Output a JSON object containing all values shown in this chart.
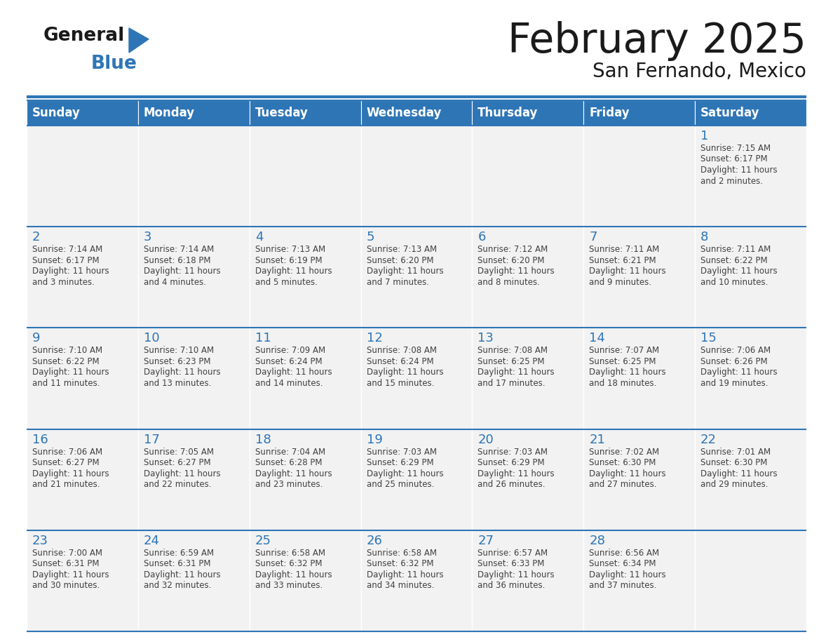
{
  "title": "February 2025",
  "subtitle": "San Fernando, Mexico",
  "header_bg": "#2E75B6",
  "header_text": "#FFFFFF",
  "cell_bg": "#F2F2F2",
  "day_names": [
    "Sunday",
    "Monday",
    "Tuesday",
    "Wednesday",
    "Thursday",
    "Friday",
    "Saturday"
  ],
  "days": [
    {
      "day": 1,
      "col": 6,
      "row": 0,
      "sunrise": "7:15 AM",
      "sunset": "6:17 PM",
      "daylight": "11 hours and 2 minutes."
    },
    {
      "day": 2,
      "col": 0,
      "row": 1,
      "sunrise": "7:14 AM",
      "sunset": "6:17 PM",
      "daylight": "11 hours and 3 minutes."
    },
    {
      "day": 3,
      "col": 1,
      "row": 1,
      "sunrise": "7:14 AM",
      "sunset": "6:18 PM",
      "daylight": "11 hours and 4 minutes."
    },
    {
      "day": 4,
      "col": 2,
      "row": 1,
      "sunrise": "7:13 AM",
      "sunset": "6:19 PM",
      "daylight": "11 hours and 5 minutes."
    },
    {
      "day": 5,
      "col": 3,
      "row": 1,
      "sunrise": "7:13 AM",
      "sunset": "6:20 PM",
      "daylight": "11 hours and 7 minutes."
    },
    {
      "day": 6,
      "col": 4,
      "row": 1,
      "sunrise": "7:12 AM",
      "sunset": "6:20 PM",
      "daylight": "11 hours and 8 minutes."
    },
    {
      "day": 7,
      "col": 5,
      "row": 1,
      "sunrise": "7:11 AM",
      "sunset": "6:21 PM",
      "daylight": "11 hours and 9 minutes."
    },
    {
      "day": 8,
      "col": 6,
      "row": 1,
      "sunrise": "7:11 AM",
      "sunset": "6:22 PM",
      "daylight": "11 hours and 10 minutes."
    },
    {
      "day": 9,
      "col": 0,
      "row": 2,
      "sunrise": "7:10 AM",
      "sunset": "6:22 PM",
      "daylight": "11 hours and 11 minutes."
    },
    {
      "day": 10,
      "col": 1,
      "row": 2,
      "sunrise": "7:10 AM",
      "sunset": "6:23 PM",
      "daylight": "11 hours and 13 minutes."
    },
    {
      "day": 11,
      "col": 2,
      "row": 2,
      "sunrise": "7:09 AM",
      "sunset": "6:24 PM",
      "daylight": "11 hours and 14 minutes."
    },
    {
      "day": 12,
      "col": 3,
      "row": 2,
      "sunrise": "7:08 AM",
      "sunset": "6:24 PM",
      "daylight": "11 hours and 15 minutes."
    },
    {
      "day": 13,
      "col": 4,
      "row": 2,
      "sunrise": "7:08 AM",
      "sunset": "6:25 PM",
      "daylight": "11 hours and 17 minutes."
    },
    {
      "day": 14,
      "col": 5,
      "row": 2,
      "sunrise": "7:07 AM",
      "sunset": "6:25 PM",
      "daylight": "11 hours and 18 minutes."
    },
    {
      "day": 15,
      "col": 6,
      "row": 2,
      "sunrise": "7:06 AM",
      "sunset": "6:26 PM",
      "daylight": "11 hours and 19 minutes."
    },
    {
      "day": 16,
      "col": 0,
      "row": 3,
      "sunrise": "7:06 AM",
      "sunset": "6:27 PM",
      "daylight": "11 hours and 21 minutes."
    },
    {
      "day": 17,
      "col": 1,
      "row": 3,
      "sunrise": "7:05 AM",
      "sunset": "6:27 PM",
      "daylight": "11 hours and 22 minutes."
    },
    {
      "day": 18,
      "col": 2,
      "row": 3,
      "sunrise": "7:04 AM",
      "sunset": "6:28 PM",
      "daylight": "11 hours and 23 minutes."
    },
    {
      "day": 19,
      "col": 3,
      "row": 3,
      "sunrise": "7:03 AM",
      "sunset": "6:29 PM",
      "daylight": "11 hours and 25 minutes."
    },
    {
      "day": 20,
      "col": 4,
      "row": 3,
      "sunrise": "7:03 AM",
      "sunset": "6:29 PM",
      "daylight": "11 hours and 26 minutes."
    },
    {
      "day": 21,
      "col": 5,
      "row": 3,
      "sunrise": "7:02 AM",
      "sunset": "6:30 PM",
      "daylight": "11 hours and 27 minutes."
    },
    {
      "day": 22,
      "col": 6,
      "row": 3,
      "sunrise": "7:01 AM",
      "sunset": "6:30 PM",
      "daylight": "11 hours and 29 minutes."
    },
    {
      "day": 23,
      "col": 0,
      "row": 4,
      "sunrise": "7:00 AM",
      "sunset": "6:31 PM",
      "daylight": "11 hours and 30 minutes."
    },
    {
      "day": 24,
      "col": 1,
      "row": 4,
      "sunrise": "6:59 AM",
      "sunset": "6:31 PM",
      "daylight": "11 hours and 32 minutes."
    },
    {
      "day": 25,
      "col": 2,
      "row": 4,
      "sunrise": "6:58 AM",
      "sunset": "6:32 PM",
      "daylight": "11 hours and 33 minutes."
    },
    {
      "day": 26,
      "col": 3,
      "row": 4,
      "sunrise": "6:58 AM",
      "sunset": "6:32 PM",
      "daylight": "11 hours and 34 minutes."
    },
    {
      "day": 27,
      "col": 4,
      "row": 4,
      "sunrise": "6:57 AM",
      "sunset": "6:33 PM",
      "daylight": "11 hours and 36 minutes."
    },
    {
      "day": 28,
      "col": 5,
      "row": 4,
      "sunrise": "6:56 AM",
      "sunset": "6:34 PM",
      "daylight": "11 hours and 37 minutes."
    }
  ],
  "num_rows": 5,
  "text_color_dark": "#1a1a1a",
  "line_color": "#2E75B6",
  "cell_text_color": "#404040",
  "day_num_color": "#2E75B6",
  "logo_general_color": "#1a1a1a",
  "logo_blue_color": "#2E75B6",
  "logo_triangle_color": "#2E75B6"
}
